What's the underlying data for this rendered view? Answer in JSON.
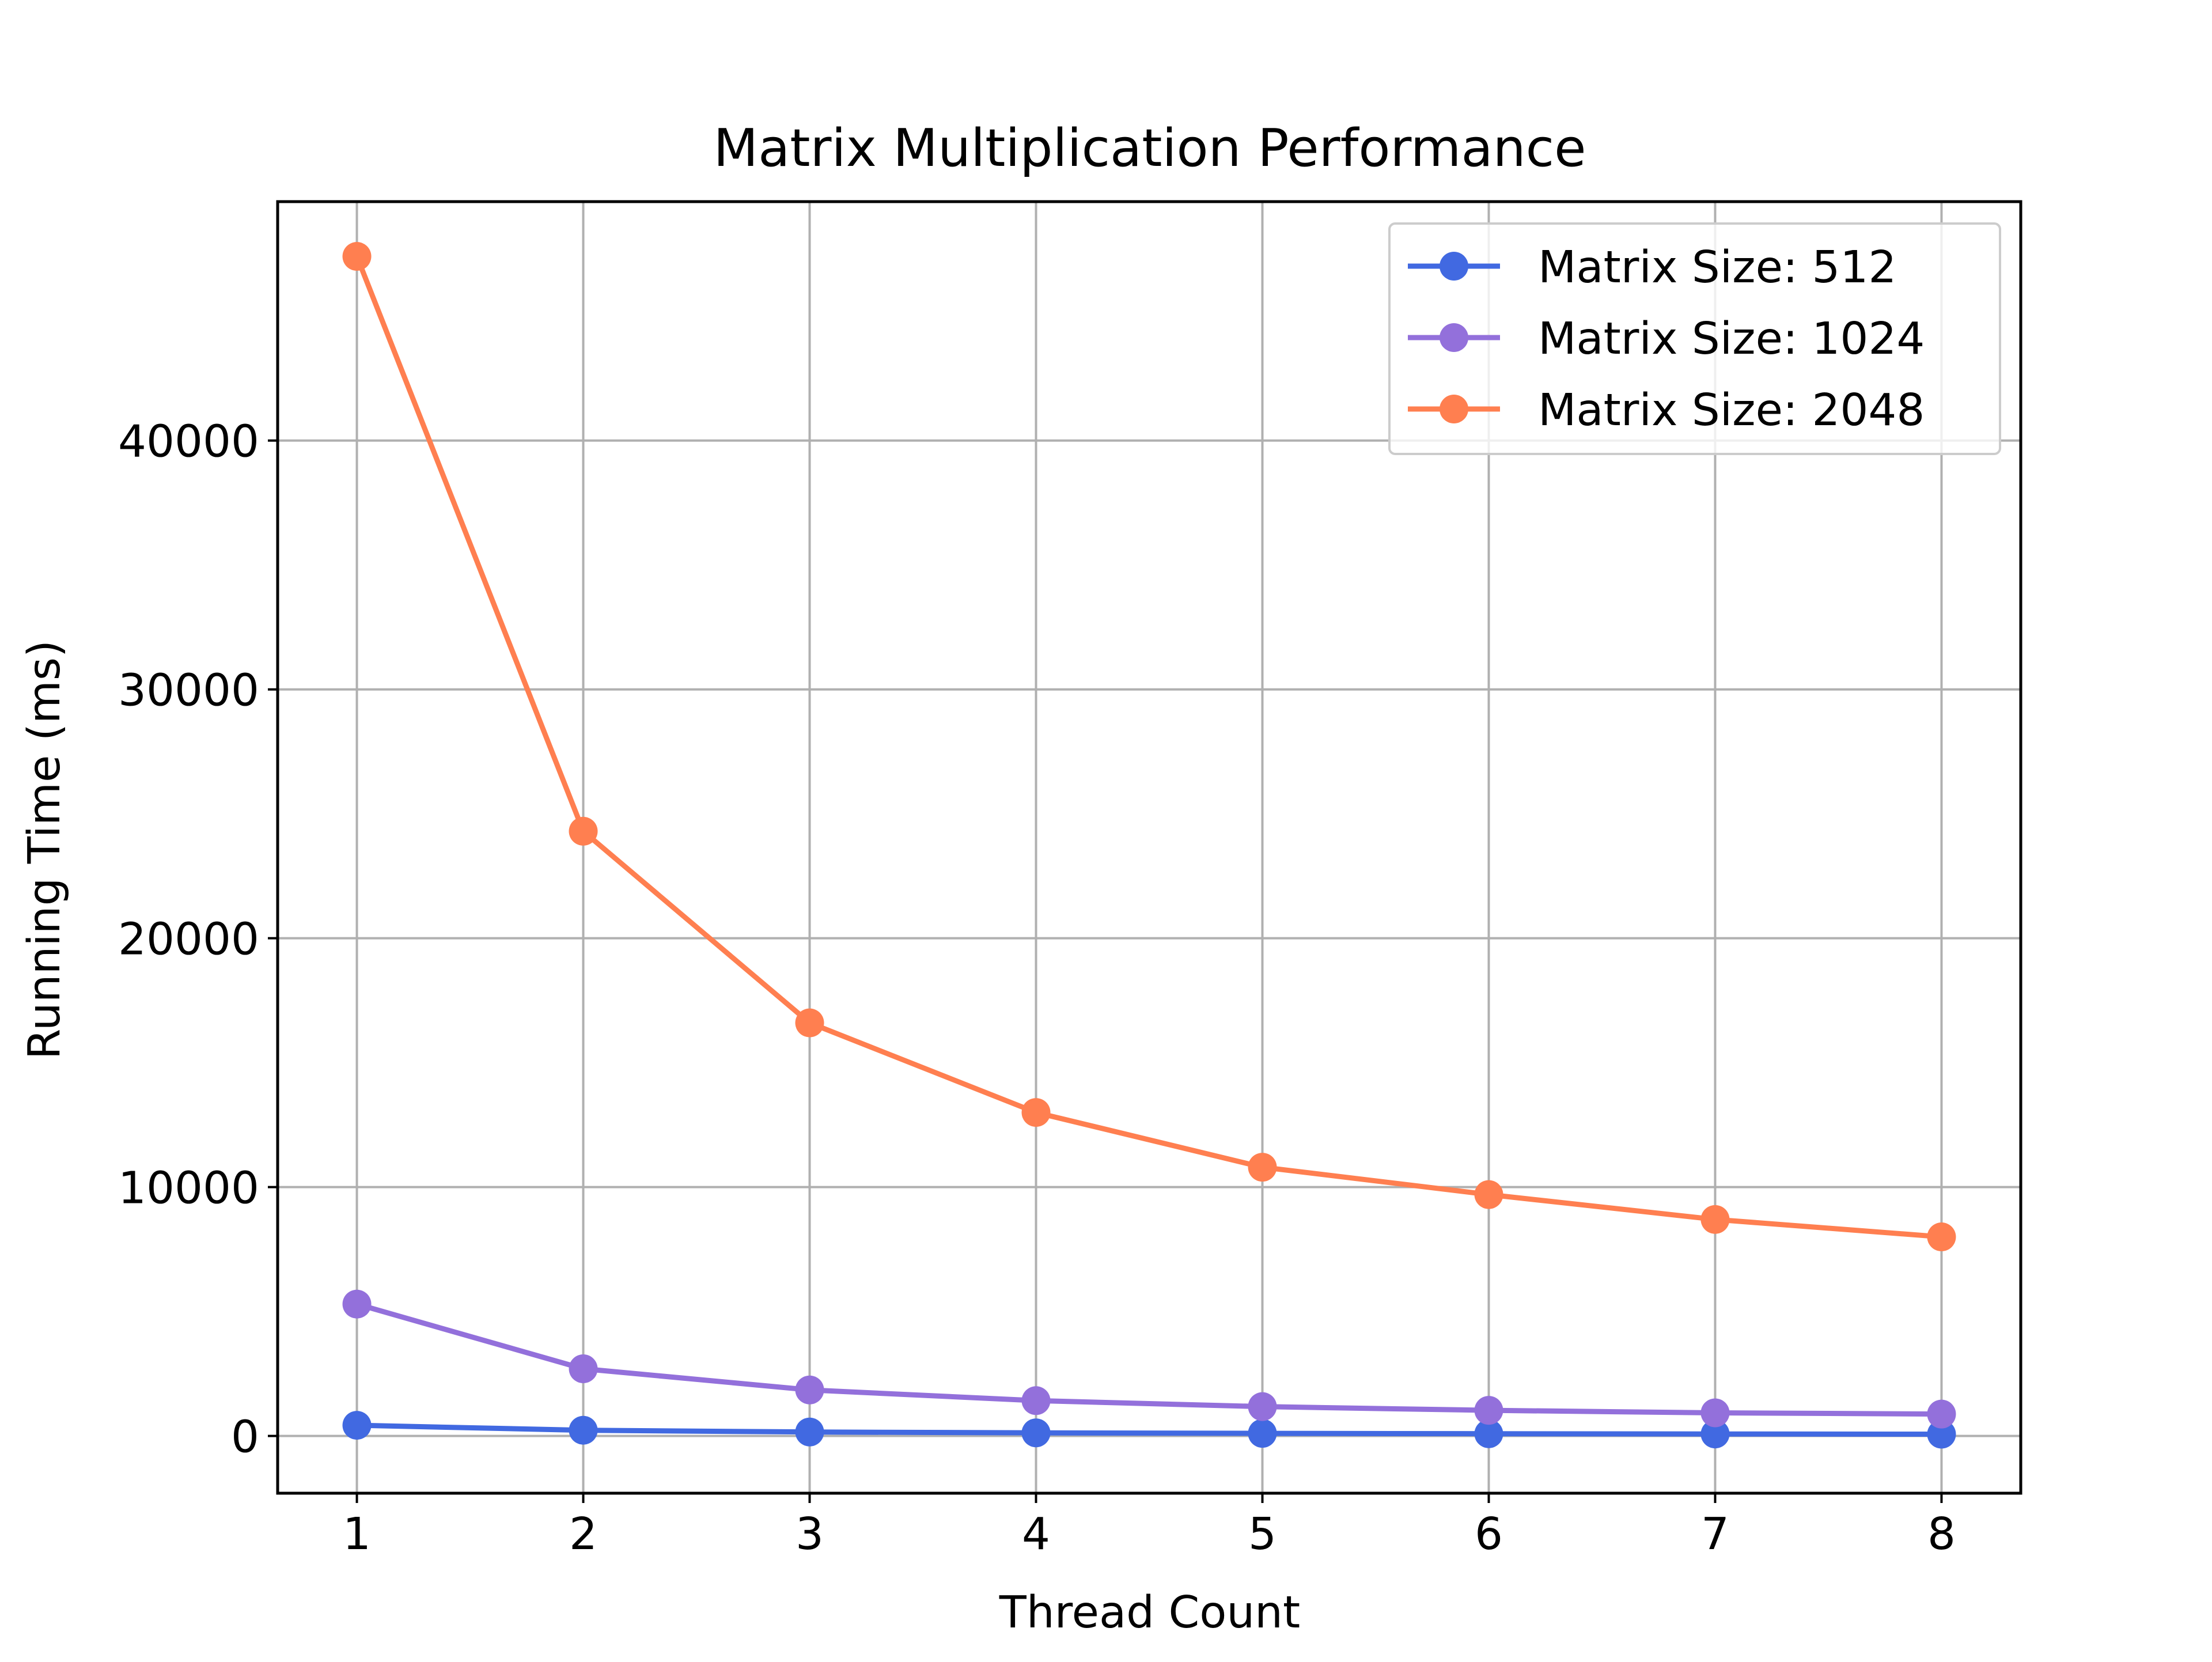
{
  "chart_data": {
    "type": "line",
    "title": "Matrix Multiplication Performance",
    "xlabel": "Thread Count",
    "ylabel": "Running Time (ms)",
    "x": [
      1,
      2,
      3,
      4,
      5,
      6,
      7,
      8
    ],
    "xlim": [
      0.65,
      8.35
    ],
    "ylim": [
      -2300,
      49600
    ],
    "xticks": [
      1,
      2,
      3,
      4,
      5,
      6,
      7,
      8
    ],
    "yticks": [
      0,
      10000,
      20000,
      30000,
      40000
    ],
    "grid": true,
    "legend_position": "top-right",
    "series": [
      {
        "name": "Matrix Size: 512",
        "color": "#4169e1",
        "values": [
          430,
          230,
          160,
          125,
          105,
          90,
          80,
          72
        ]
      },
      {
        "name": "Matrix Size: 1024",
        "color": "#9370db",
        "values": [
          5300,
          2700,
          1850,
          1420,
          1180,
          1030,
          930,
          880
        ]
      },
      {
        "name": "Matrix Size: 2048",
        "color": "#ff7f50",
        "values": [
          47400,
          24300,
          16600,
          13000,
          10800,
          9700,
          8700,
          8000
        ]
      }
    ]
  }
}
